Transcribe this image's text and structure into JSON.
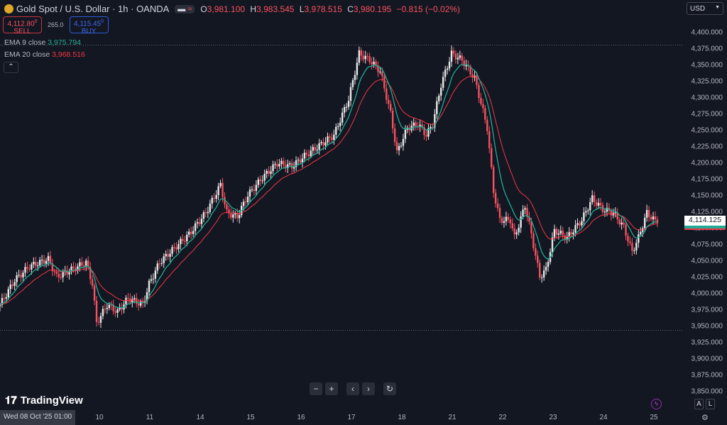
{
  "header": {
    "symbol": "Gold Spot / U.S. Dollar · 1h · OANDA",
    "ohlc": [
      {
        "k": "O",
        "v": "3,981.100"
      },
      {
        "k": "H",
        "v": "3,983.545"
      },
      {
        "k": "L",
        "v": "3,978.515"
      },
      {
        "k": "C",
        "v": "3,980.195"
      }
    ],
    "change": "−0.815 (−0.02%)"
  },
  "trade": {
    "sell_price": "4,112.80",
    "sell_sup": "0",
    "sell_label": "SELL",
    "spread": "265.0",
    "buy_price": "4,115.45",
    "buy_sup": "0",
    "buy_label": "BUY"
  },
  "indicators": [
    {
      "label": "EMA 9 close",
      "value": "3,975.794",
      "color": "#22ab94"
    },
    {
      "label": "EMA 20 close",
      "value": "3,968.516",
      "color": "#f23645"
    }
  ],
  "collapse_icon": "chevron-up-icon",
  "currency": "USD",
  "last_price": "4,114.125",
  "crosshair_time": "Wed 08 Oct '25 01:00",
  "nav": [
    "−",
    "+",
    "‹",
    "›",
    "↻"
  ],
  "brand": "TradingView",
  "scale_buttons": [
    "A",
    "L"
  ],
  "colors": {
    "up": "#e8e8e8",
    "down": "#f7525f",
    "ema9": "#22ab94",
    "ema20": "#f23645",
    "bg": "#131722"
  },
  "chart_data": {
    "type": "candlestick",
    "symbol": "XAUUSD",
    "interval": "1h",
    "yticks": [
      "4,400.000",
      "4,375.000",
      "4,350.000",
      "4,325.000",
      "4,300.000",
      "4,275.000",
      "4,250.000",
      "4,225.000",
      "4,200.000",
      "4,175.000",
      "4,150.000",
      "4,125.000",
      "4,100.000",
      "4,075.000",
      "4,050.000",
      "4,025.000",
      "4,000.000",
      "3,975.000",
      "3,950.000",
      "3,925.000",
      "3,900.000",
      "3,875.000",
      "3,850.000"
    ],
    "ylim": [
      3850,
      4400
    ],
    "xticks": [
      "10",
      "11",
      "14",
      "15",
      "16",
      "17",
      "18",
      "21",
      "22",
      "23",
      "24",
      "25"
    ],
    "days": [
      "8",
      "9",
      "10",
      "11",
      "14",
      "15",
      "16",
      "17",
      "18",
      "21",
      "22",
      "23",
      "24",
      "25"
    ],
    "high_line": 4381,
    "low_line": 3944,
    "approx_closes": [
      [
        "8 01",
        3983
      ],
      [
        "8 08",
        4021
      ],
      [
        "8 15",
        4042
      ],
      [
        "9 00",
        4053
      ],
      [
        "9 04",
        4026
      ],
      [
        "9 11",
        4037
      ],
      [
        "9 18",
        4048
      ],
      [
        "9 21",
        4015
      ],
      [
        "9 23",
        3955
      ],
      [
        "10 04",
        3983
      ],
      [
        "10 09",
        3972
      ],
      [
        "10 14",
        3993
      ],
      [
        "10 21",
        3983
      ],
      [
        "11 00",
        4015
      ],
      [
        "11 05",
        4048
      ],
      [
        "11 12",
        4070
      ],
      [
        "11 19",
        4091
      ],
      [
        "14 03",
        4124
      ],
      [
        "14 10",
        4167
      ],
      [
        "14 13",
        4124
      ],
      [
        "14 18",
        4118
      ],
      [
        "14 23",
        4151
      ],
      [
        "15 06",
        4178
      ],
      [
        "15 13",
        4200
      ],
      [
        "15 20",
        4195
      ],
      [
        "16 02",
        4211
      ],
      [
        "16 09",
        4227
      ],
      [
        "16 16",
        4243
      ],
      [
        "16 23",
        4298
      ],
      [
        "17 04",
        4368
      ],
      [
        "17 09",
        4358
      ],
      [
        "17 14",
        4341
      ],
      [
        "17 19",
        4276
      ],
      [
        "17 22",
        4216
      ],
      [
        "18 03",
        4254
      ],
      [
        "18 08",
        4260
      ],
      [
        "18 12",
        4243
      ],
      [
        "18 15",
        4260
      ],
      [
        "18 19",
        4320
      ],
      [
        "21 00",
        4368
      ],
      [
        "21 05",
        4358
      ],
      [
        "21 11",
        4330
      ],
      [
        "21 17",
        4254
      ],
      [
        "21 20",
        4157
      ],
      [
        "21 23",
        4113
      ],
      [
        "22 04",
        4113
      ],
      [
        "22 06",
        4086
      ],
      [
        "22 11",
        4135
      ],
      [
        "22 14",
        4091
      ],
      [
        "22 18",
        4026
      ],
      [
        "22 21",
        4037
      ],
      [
        "23 01",
        4097
      ],
      [
        "23 07",
        4086
      ],
      [
        "23 14",
        4113
      ],
      [
        "23 19",
        4146
      ],
      [
        "24 00",
        4129
      ],
      [
        "24 05",
        4124
      ],
      [
        "24 10",
        4102
      ],
      [
        "24 14",
        4064
      ],
      [
        "24 17",
        4086
      ],
      [
        "24 21",
        4124
      ],
      [
        "25 02",
        4108
      ]
    ]
  }
}
